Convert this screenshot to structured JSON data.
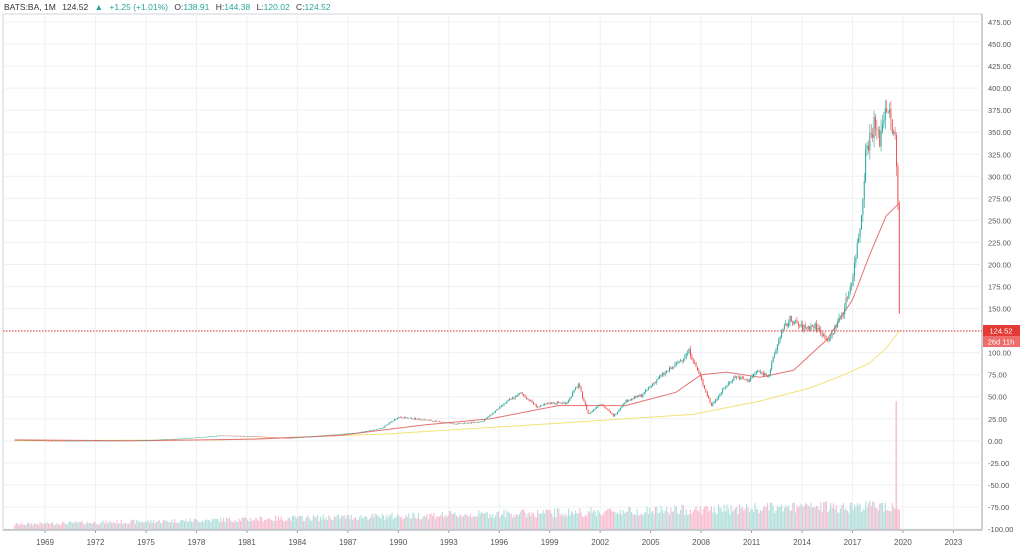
{
  "header": {
    "symbol": "BATS:BA, 1M",
    "last": "124.52",
    "change_icon": "triangle-up-icon",
    "change": "+1.25 (+1.01%)",
    "o_label": "O:",
    "o": "138.91",
    "h_label": "H:",
    "h": "144.38",
    "l_label": "L:",
    "l": "120.02",
    "c_label": "C:",
    "c": "124.52"
  },
  "price_tag": {
    "value": "124.52",
    "countdown": "26d 11h"
  },
  "colors": {
    "up": "#26a69a",
    "down": "#ef5350",
    "ma_fast": "#e57373",
    "ma_slow": "#f4e27a",
    "price_line": "#e53935",
    "grid": "#eef0f3",
    "vol_up": "#b2dfdb",
    "vol_down": "#f8bbd0"
  },
  "chart_data": {
    "type": "candlestick",
    "y_ticks": [
      "475.00",
      "450.00",
      "425.00",
      "400.00",
      "375.00",
      "350.00",
      "325.00",
      "300.00",
      "275.00",
      "250.00",
      "225.00",
      "200.00",
      "175.00",
      "150.00",
      "125.00",
      "100.00",
      "75.00",
      "50.00",
      "25.00",
      "0.00",
      "-25.00",
      "-50.00",
      "-75.00",
      "-100.00"
    ],
    "x_ticks": [
      "1969",
      "1972",
      "1975",
      "1978",
      "1981",
      "1984",
      "1987",
      "1990",
      "1993",
      "1996",
      "1999",
      "2002",
      "2005",
      "2008",
      "2011",
      "2014",
      "2017",
      "2020",
      "2023"
    ],
    "ylim": [
      -100,
      475
    ],
    "xlim": [
      1967.0,
      2025.2
    ],
    "last_price": 124.52,
    "series": [
      {
        "kind": "price",
        "x": [
          1967.7,
          1970,
          1972,
          1974,
          1976,
          1978,
          1980,
          1982,
          1984,
          1986,
          1988,
          1989.5,
          1990.5,
          1992,
          1994,
          1995.5,
          1997,
          1997.8,
          1998.8,
          1999.5,
          2000.5,
          2001.2,
          2001.8,
          2002.5,
          2003.3,
          2004,
          2005,
          2006,
          2007,
          2007.8,
          2008.5,
          2009.1,
          2009.8,
          2010.5,
          2011.3,
          2011.8,
          2012.5,
          2013.2,
          2013.8,
          2014.5,
          2015.3,
          2016.1,
          2016.5,
          2017,
          2017.5,
          2018,
          2018.3,
          2018.8,
          2019.1,
          2019.5,
          2019.9,
          2020.05,
          2020.2,
          2020.3
        ],
        "y": [
          1,
          0,
          0,
          0,
          1,
          3,
          6,
          5,
          3,
          6,
          9,
          14,
          27,
          24,
          19,
          22,
          45,
          54,
          38,
          43,
          43,
          64,
          30,
          43,
          28,
          45,
          52,
          72,
          86,
          102,
          70,
          40,
          58,
          73,
          68,
          79,
          74,
          120,
          138,
          128,
          130,
          113,
          130,
          150,
          185,
          250,
          330,
          360,
          340,
          385,
          350,
          340,
          270,
          124.52
        ]
      },
      {
        "kind": "moving_average_fast",
        "x": [
          1967.7,
          1975,
          1982,
          1987,
          1992,
          1996,
          2000,
          2004,
          2007,
          2008.5,
          2010,
          2012,
          2014,
          2016,
          2017.5,
          2018.5,
          2019.5,
          2020.3
        ],
        "y": [
          1,
          0,
          2,
          6,
          18,
          25,
          40,
          40,
          55,
          75,
          78,
          72,
          80,
          115,
          160,
          210,
          255,
          270
        ]
      },
      {
        "kind": "moving_average_slow",
        "x": [
          1967.7,
          1980,
          1990,
          2000,
          2008,
          2012,
          2015,
          2017,
          2018.5,
          2019.5,
          2020.3
        ],
        "y": [
          0,
          1,
          8,
          20,
          30,
          45,
          60,
          75,
          88,
          105,
          125
        ]
      },
      {
        "kind": "volume_peak",
        "x": [
          2020.1
        ],
        "y": [
          45
        ]
      }
    ]
  }
}
